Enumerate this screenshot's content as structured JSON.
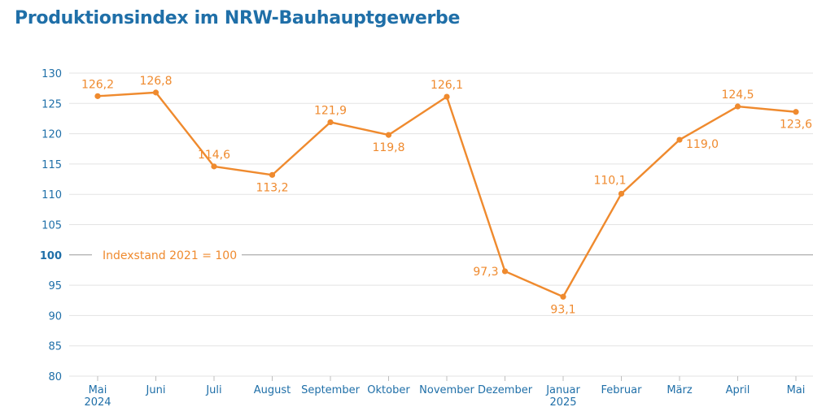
{
  "title": "Produktionsindex im NRW-Bauhauptgewerbe",
  "chart_data": {
    "type": "line",
    "title": "Produktionsindex im NRW-Bauhauptgewerbe",
    "categories": [
      "Mai",
      "Juni",
      "Juli",
      "August",
      "September",
      "Oktober",
      "November",
      "Dezember",
      "Januar",
      "Februar",
      "März",
      "April",
      "Mai"
    ],
    "year_labels": [
      "2024",
      "",
      "",
      "",
      "",
      "",
      "",
      "",
      "2025",
      "",
      "",
      "",
      ""
    ],
    "series": [
      {
        "values": [
          126.2,
          126.8,
          114.6,
          113.2,
          121.9,
          119.8,
          126.1,
          97.3,
          93.1,
          110.1,
          119.0,
          124.5,
          123.6
        ],
        "labels": [
          "126,2",
          "126,8",
          "114,6",
          "113,2",
          "121,9",
          "119,8",
          "126,1",
          "97,3",
          "93,1",
          "110,1",
          "119,0",
          "124,5",
          "123,6"
        ]
      }
    ],
    "yticks": [
      80,
      85,
      90,
      95,
      100,
      105,
      110,
      115,
      120,
      125,
      130
    ],
    "ylim": [
      80,
      130
    ],
    "reference_line": {
      "value": 100,
      "label": "Indexstand 2021 = 100"
    },
    "grid": true,
    "colors": {
      "line": "#ef8a2e",
      "axis_text": "#1f6fa8",
      "title": "#1f6fa8",
      "grid": "#e3e3e3",
      "reference": "#9a9a9a"
    }
  }
}
